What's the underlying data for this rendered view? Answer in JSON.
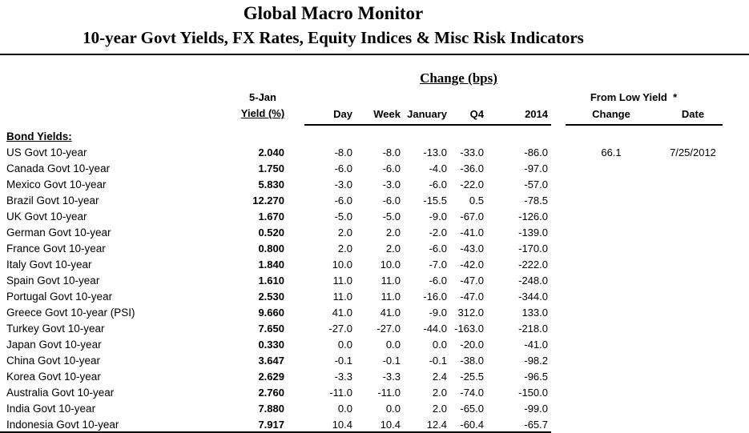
{
  "header": {
    "title": "Global Macro Monitor",
    "subtitle": "10-year Govt Yields, FX Rates, Equity Indices & Misc Risk Indicators"
  },
  "table": {
    "group_header": "Change (bps)",
    "yield_col_line1": "5-Jan",
    "yield_col_line2": "Yield (%)",
    "change_cols": [
      "Day",
      "Week",
      "January",
      "Q4",
      "2014"
    ],
    "from_low_header": "From Low Yield  *",
    "from_low_cols": {
      "change": "Change",
      "date": "Date"
    },
    "section_label": "Bond Yields:",
    "rows": [
      {
        "label": "US Govt 10-year",
        "yield": "2.040",
        "day": "-8.0",
        "week": "-8.0",
        "january": "-13.0",
        "q4": "-33.0",
        "y2014": "-86.0",
        "low_change": "66.1",
        "low_date": "7/25/2012"
      },
      {
        "label": "Canada Govt 10-year",
        "yield": "1.750",
        "day": "-6.0",
        "week": "-6.0",
        "january": "-4.0",
        "q4": "-36.0",
        "y2014": "-97.0"
      },
      {
        "label": "Mexico Govt 10-year",
        "yield": "5.830",
        "day": "-3.0",
        "week": "-3.0",
        "january": "-6.0",
        "q4": "-22.0",
        "y2014": "-57.0"
      },
      {
        "label": "Brazil Govt 10-year",
        "yield": "12.270",
        "day": "-6.0",
        "week": "-6.0",
        "january": "-15.5",
        "q4": "0.5",
        "y2014": "-78.5"
      },
      {
        "label": "UK Govt 10-year",
        "yield": "1.670",
        "day": "-5.0",
        "week": "-5.0",
        "january": "-9.0",
        "q4": "-67.0",
        "y2014": "-126.0"
      },
      {
        "label": "German Govt 10-year",
        "yield": "0.520",
        "day": "2.0",
        "week": "2.0",
        "january": "-2.0",
        "q4": "-41.0",
        "y2014": "-139.0"
      },
      {
        "label": "France Govt 10-year",
        "yield": "0.800",
        "day": "2.0",
        "week": "2.0",
        "january": "-6.0",
        "q4": "-43.0",
        "y2014": "-170.0"
      },
      {
        "label": "Italy Govt 10-year",
        "yield": "1.840",
        "day": "10.0",
        "week": "10.0",
        "january": "-7.0",
        "q4": "-42.0",
        "y2014": "-222.0"
      },
      {
        "label": "Spain Govt 10-year",
        "yield": "1.610",
        "day": "11.0",
        "week": "11.0",
        "january": "-6.0",
        "q4": "-47.0",
        "y2014": "-248.0"
      },
      {
        "label": "Portugal Govt 10-year",
        "yield": "2.530",
        "day": "11.0",
        "week": "11.0",
        "january": "-16.0",
        "q4": "-47.0",
        "y2014": "-344.0"
      },
      {
        "label": "Greece Govt 10-year (PSI)",
        "yield": "9.660",
        "day": "41.0",
        "week": "41.0",
        "january": "-9.0",
        "q4": "312.0",
        "y2014": "133.0"
      },
      {
        "label": "Turkey Govt 10-year",
        "yield": "7.650",
        "day": "-27.0",
        "week": "-27.0",
        "january": "-44.0",
        "q4": "-163.0",
        "y2014": "-218.0"
      },
      {
        "label": "Japan Govt 10-year",
        "yield": "0.330",
        "day": "0.0",
        "week": "0.0",
        "january": "0.0",
        "q4": "-20.0",
        "y2014": "-41.0"
      },
      {
        "label": "China Govt 10-year",
        "yield": "3.647",
        "day": "-0.1",
        "week": "-0.1",
        "january": "-0.1",
        "q4": "-38.0",
        "y2014": "-98.2"
      },
      {
        "label": "Korea Govt 10-year",
        "yield": "2.629",
        "day": "-3.3",
        "week": "-3.3",
        "january": "2.4",
        "q4": "-25.5",
        "y2014": "-96.5"
      },
      {
        "label": "Australia Govt 10-year",
        "yield": "2.760",
        "day": "-11.0",
        "week": "-11.0",
        "january": "2.0",
        "q4": "-74.0",
        "y2014": "-150.0"
      },
      {
        "label": "India Govt 10-year",
        "yield": "7.880",
        "day": "0.0",
        "week": "0.0",
        "january": "2.0",
        "q4": "-65.0",
        "y2014": "-99.0"
      },
      {
        "label": "Indonesia Govt 10-year",
        "yield": "7.917",
        "day": "10.4",
        "week": "10.4",
        "january": "12.4",
        "q4": "-60.4",
        "y2014": "-65.7"
      }
    ]
  },
  "colors": {
    "text": "#000000",
    "background": "#ffffff",
    "rule": "#000000"
  }
}
